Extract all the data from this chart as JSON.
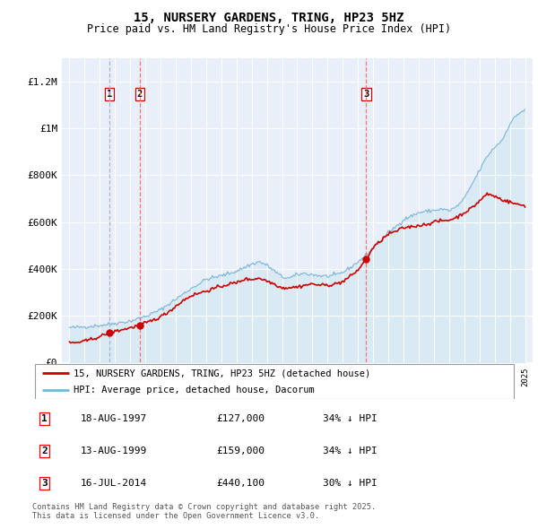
{
  "title": "15, NURSERY GARDENS, TRING, HP23 5HZ",
  "subtitle": "Price paid vs. HM Land Registry's House Price Index (HPI)",
  "legend_property": "15, NURSERY GARDENS, TRING, HP23 5HZ (detached house)",
  "legend_hpi": "HPI: Average price, detached house, Dacorum",
  "footnote": "Contains HM Land Registry data © Crown copyright and database right 2025.\nThis data is licensed under the Open Government Licence v3.0.",
  "property_color": "#cc0000",
  "hpi_color": "#7ab4d8",
  "hpi_fill_color": "#daeaf5",
  "background_color": "#e8eff8",
  "sale_vline_color_1": "#aaaacc",
  "sale_vline_color_2": "#ff6666",
  "ylim": [
    0,
    1300000
  ],
  "yticks": [
    0,
    200000,
    400000,
    600000,
    800000,
    1000000,
    1200000
  ],
  "ytick_labels": [
    "£0",
    "£200K",
    "£400K",
    "£600K",
    "£800K",
    "£1M",
    "£1.2M"
  ],
  "sales": [
    {
      "num": 1,
      "year": 1997.62,
      "price": 127000,
      "date": "18-AUG-1997",
      "pct": "34%",
      "arrow": "↓",
      "vline_color": "#aaaacc"
    },
    {
      "num": 2,
      "year": 1999.62,
      "price": 159000,
      "date": "13-AUG-1999",
      "pct": "34%",
      "arrow": "↓",
      "vline_color": "#ff6666"
    },
    {
      "num": 3,
      "year": 2014.54,
      "price": 440100,
      "date": "16-JUL-2014",
      "pct": "30%",
      "arrow": "↓",
      "vline_color": "#ff6666"
    }
  ]
}
